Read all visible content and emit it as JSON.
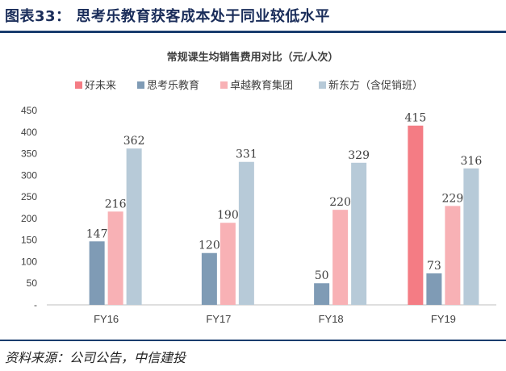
{
  "figure": {
    "title": "图表33：    思考乐教育获客成本处于同业较低水平",
    "source": "资料来源：公司公告，中信建投"
  },
  "chart_data": {
    "type": "bar",
    "title": "常规课生均销售费用对比（元/人次）",
    "categories": [
      "FY16",
      "FY17",
      "FY18",
      "FY19"
    ],
    "series": [
      {
        "name": "好未来",
        "color": "#f47c84",
        "values": [
          null,
          null,
          null,
          415
        ]
      },
      {
        "name": "思考乐教育",
        "color": "#7f9bb5",
        "values": [
          147,
          120,
          50,
          73
        ]
      },
      {
        "name": "卓越教育集团",
        "color": "#f8b1b5",
        "values": [
          216,
          190,
          220,
          229
        ]
      },
      {
        "name": "新东方（含促销班）",
        "color": "#b7cad8",
        "values": [
          362,
          331,
          329,
          316
        ]
      }
    ],
    "yticks": [
      "-",
      "50",
      "100",
      "150",
      "200",
      "250",
      "300",
      "350",
      "400",
      "450"
    ],
    "ylim": [
      0,
      450
    ],
    "legend_position": "top",
    "grid": false
  }
}
